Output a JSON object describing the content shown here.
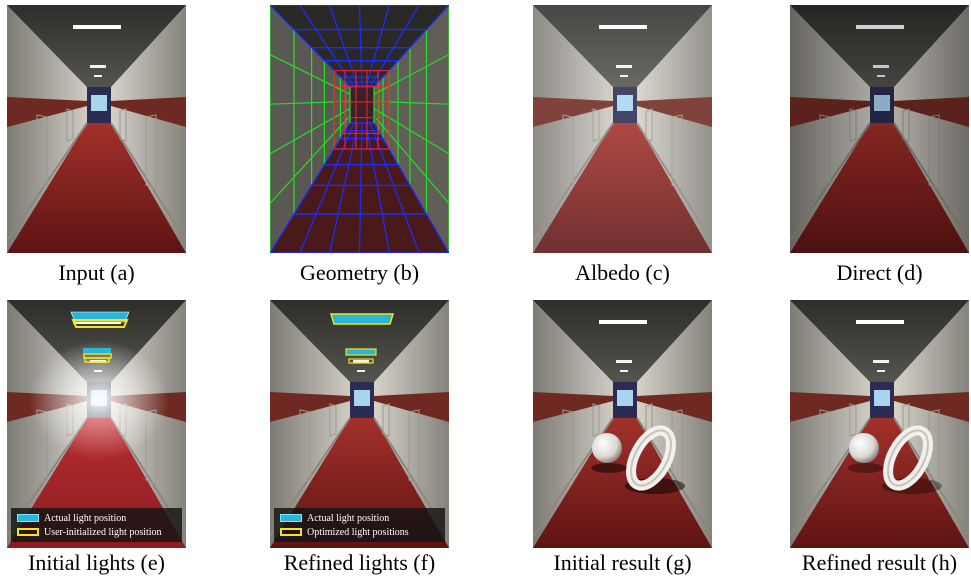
{
  "panels": [
    {
      "caption": "Input (a)"
    },
    {
      "caption": "Geometry (b)"
    },
    {
      "caption": "Albedo (c)"
    },
    {
      "caption": "Direct (d)"
    },
    {
      "caption": "Initial lights (e)",
      "legend": [
        "Actual light position",
        "User-initialized light position"
      ]
    },
    {
      "caption": "Refined lights (f)",
      "legend": [
        "Actual light position",
        "Optimized light positions"
      ]
    },
    {
      "caption": "Initial result (g)"
    },
    {
      "caption": "Refined result (h)"
    }
  ],
  "colors": {
    "carpet": "#8a1e1e",
    "wall": "#c9c6bf",
    "stripe": "#6e2a22",
    "ceiling": "#3a3a36",
    "grid_blue": "#1a2cff",
    "grid_green": "#22e022",
    "grid_red": "#ff2020",
    "light_actual": "#29b6d8",
    "light_user": "#f2e51a"
  }
}
